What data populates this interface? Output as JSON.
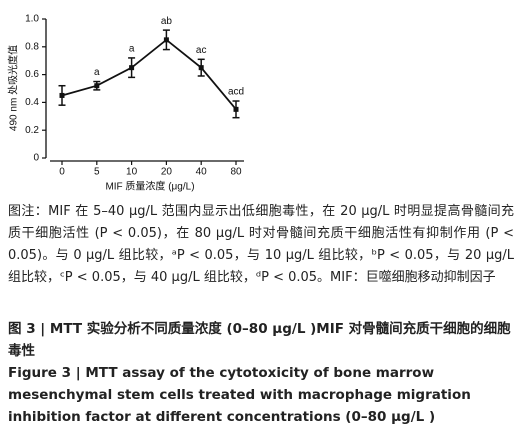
{
  "chart_data": {
    "type": "line",
    "ylabel": "490 nm 处吸光度值",
    "xlabel": "MIF 质量浓度 (μg/L)",
    "categories": [
      "0",
      "5",
      "10",
      "20",
      "40",
      "80"
    ],
    "values": [
      0.45,
      0.52,
      0.65,
      0.85,
      0.65,
      0.35
    ],
    "errors": [
      0.07,
      0.03,
      0.07,
      0.07,
      0.06,
      0.06
    ],
    "annotations": [
      null,
      "a",
      "a",
      "ab",
      "ac",
      "acd"
    ],
    "color": "#111111",
    "ylim": [
      0,
      1
    ],
    "yticks": [
      0,
      0.2,
      0.4,
      0.6,
      0.8,
      {
        "value": 1,
        "label": "1.0"
      }
    ]
  },
  "caption": {
    "note": "图注：MIF 在 5–40 μg/L 范围内显示出低细胞毒性，在 20 μg/L 时明显提高骨髓间充质干细胞活性 (P < 0.05)，在 80 μg/L 时对骨髓间充质干细胞活性有抑制作用 (P < 0.05)。与 0 μg/L 组比较，ᵃP < 0.05，与 10 μg/L 组比较，ᵇP < 0.05，与 20 μg/L 组比较，ᶜP < 0.05，与 40 μg/L 组比较，ᵈP < 0.05。MIF：巨噬细胞移动抑制因子",
    "title_zh": "图 3 | MTT 实验分析不同质量浓度 (0–80 μg/L )MIF 对骨髓间充质干细胞的细胞毒性",
    "title_en": "Figure 3 | MTT assay of the cytotoxicity of bone marrow mesenchymal stem cells treated with macrophage migration inhibition factor at different concentrations (0–80 μg/L )"
  }
}
